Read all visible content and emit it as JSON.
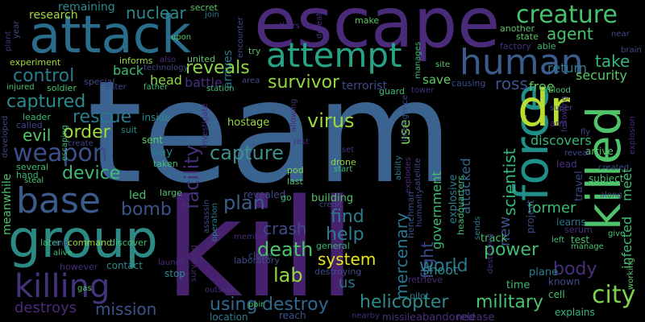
{
  "word_cloud": {
    "background": "#000000",
    "words": [
      {
        "text": "team",
        "color": "#3b638f"
      },
      {
        "text": "kill",
        "color": "#46216e"
      },
      {
        "text": "escape",
        "color": "#4a2b7a"
      },
      {
        "text": "attack",
        "color": "#2a6c8b"
      },
      {
        "text": "group",
        "color": "#2c8a84"
      },
      {
        "text": "force",
        "color": "#1f8f88"
      },
      {
        "text": "killed",
        "color": "#4ec36a"
      },
      {
        "text": "dr",
        "color": "#b9dd2e"
      },
      {
        "text": "attempt",
        "color": "#26a383"
      },
      {
        "text": "human",
        "color": "#3a5b8c"
      },
      {
        "text": "base",
        "color": "#3a5b8c"
      },
      {
        "text": "killing",
        "color": "#46337d"
      },
      {
        "text": "creature",
        "color": "#48c16e"
      },
      {
        "text": "city",
        "color": "#7cd250"
      },
      {
        "text": "weapon",
        "color": "#3c4f8a"
      },
      {
        "text": "reveals",
        "color": "#8cd845"
      },
      {
        "text": "control",
        "color": "#287b8e"
      },
      {
        "text": "rescue",
        "color": "#287b8e"
      },
      {
        "text": "captured",
        "color": "#2b8b8b"
      },
      {
        "text": "facility",
        "color": "#472d7b"
      },
      {
        "text": "survivor",
        "color": "#93d741"
      },
      {
        "text": "capture",
        "color": "#3b8f8c"
      },
      {
        "text": "virus",
        "color": "#9bd93c"
      },
      {
        "text": "plan",
        "color": "#3a5e8c"
      },
      {
        "text": "bomb",
        "color": "#3a548c"
      },
      {
        "text": "device",
        "color": "#3fbc73"
      },
      {
        "text": "order",
        "color": "#a0da39"
      },
      {
        "text": "death",
        "color": "#4ec36a"
      },
      {
        "text": "lab",
        "color": "#93d741"
      },
      {
        "text": "find",
        "color": "#2c7c8e"
      },
      {
        "text": "help",
        "color": "#2c7c8e"
      },
      {
        "text": "system",
        "color": "#e9e61b"
      },
      {
        "text": "crash",
        "color": "#3e4a89"
      },
      {
        "text": "mercenary",
        "color": "#2a768e"
      },
      {
        "text": "fight",
        "color": "#3e4a89"
      },
      {
        "text": "world",
        "color": "#2a768e"
      },
      {
        "text": "power",
        "color": "#3fbc73"
      },
      {
        "text": "body",
        "color": "#46307e"
      },
      {
        "text": "scientist",
        "color": "#35b779"
      },
      {
        "text": "infected",
        "color": "#3fbc73"
      },
      {
        "text": "meet",
        "color": "#3fbc73"
      },
      {
        "text": "military",
        "color": "#4ac16d"
      },
      {
        "text": "helicopter",
        "color": "#2c8a8b"
      },
      {
        "text": "destroy",
        "color": "#31688e"
      },
      {
        "text": "using",
        "color": "#31688e"
      },
      {
        "text": "mission",
        "color": "#3a548c"
      },
      {
        "text": "destroys",
        "color": "#4a2b7a"
      },
      {
        "text": "us",
        "color": "#2d708e"
      },
      {
        "text": "agent",
        "color": "#4ac16d"
      },
      {
        "text": "take",
        "color": "#35b779"
      },
      {
        "text": "return",
        "color": "#2c7c8e"
      },
      {
        "text": "security",
        "color": "#58c765"
      },
      {
        "text": "free",
        "color": "#5ec962"
      },
      {
        "text": "ross",
        "color": "#3b528b"
      },
      {
        "text": "nuclear",
        "color": "#2c8a8b"
      },
      {
        "text": "head",
        "color": "#8cd845"
      },
      {
        "text": "back",
        "color": "#3fbc73"
      },
      {
        "text": "battle",
        "color": "#46307e"
      },
      {
        "text": "save",
        "color": "#5ec962"
      },
      {
        "text": "new",
        "color": "#3a548c"
      },
      {
        "text": "former",
        "color": "#3fbc73"
      },
      {
        "text": "discovers",
        "color": "#35b779"
      },
      {
        "text": "government",
        "color": "#3fbc73"
      },
      {
        "text": "attacked",
        "color": "#31688e"
      },
      {
        "text": "shoot",
        "color": "#2c8a8b"
      },
      {
        "text": "use",
        "color": "#7cd250"
      },
      {
        "text": "evil",
        "color": "#56c667"
      },
      {
        "text": "led",
        "color": "#4ac16d"
      },
      {
        "text": "research",
        "color": "#a0da39"
      },
      {
        "text": "remaining",
        "color": "#2c8a8b"
      },
      {
        "text": "arrives",
        "color": "#2a768e"
      },
      {
        "text": "terrorist",
        "color": "#3e4a89"
      },
      {
        "text": "meanwhile",
        "color": "#4ac16d"
      },
      {
        "text": "hostage",
        "color": "#9bd93c"
      },
      {
        "text": "revealed",
        "color": "#3e4a89"
      },
      {
        "text": "building",
        "color": "#4ec36a"
      },
      {
        "text": "plane",
        "color": "#2c7c8e"
      },
      {
        "text": "time",
        "color": "#3fbc73"
      },
      {
        "text": "known",
        "color": "#3e4a89"
      },
      {
        "text": "explains",
        "color": "#35b779"
      },
      {
        "text": "abandoned",
        "color": "#4a2b7a"
      },
      {
        "text": "release",
        "color": "#46307e"
      },
      {
        "text": "missile",
        "color": "#46307e"
      },
      {
        "text": "pilot",
        "color": "#2a768e"
      },
      {
        "text": "reach",
        "color": "#3a548c"
      },
      {
        "text": "location",
        "color": "#2c7c8e"
      },
      {
        "text": "command",
        "color": "#9bd93c"
      },
      {
        "text": "later",
        "color": "#3fbc73"
      },
      {
        "text": "contact",
        "color": "#2c8a8b"
      },
      {
        "text": "stop",
        "color": "#2c8a8b"
      },
      {
        "text": "inside",
        "color": "#2c8a8b"
      },
      {
        "text": "sent",
        "color": "#5ec962"
      },
      {
        "text": "suit",
        "color": "#2c8a8b"
      },
      {
        "text": "way",
        "color": "#2c7c8e"
      },
      {
        "text": "taken",
        "color": "#3fbc73"
      },
      {
        "text": "large",
        "color": "#4ac16d"
      },
      {
        "text": "discover",
        "color": "#3fbc73"
      },
      {
        "text": "explosive",
        "color": "#2c7c8e"
      },
      {
        "text": "headquarters",
        "color": "#3fbc73"
      },
      {
        "text": "track",
        "color": "#4ac16d"
      },
      {
        "text": "travel",
        "color": "#3e4a89"
      },
      {
        "text": "project",
        "color": "#3e4a89"
      },
      {
        "text": "lead",
        "color": "#46307e"
      },
      {
        "text": "arrive",
        "color": "#58c765"
      },
      {
        "text": "subject",
        "color": "#4ac16d"
      },
      {
        "text": "learns",
        "color": "#2a768e"
      },
      {
        "text": "test",
        "color": "#4ac16d"
      },
      {
        "text": "serum",
        "color": "#4a2b7a"
      },
      {
        "text": "give",
        "color": "#4ac16d"
      },
      {
        "text": "manage",
        "color": "#4ac16d"
      },
      {
        "text": "left",
        "color": "#3fbc73"
      },
      {
        "text": "cell",
        "color": "#4ac16d"
      },
      {
        "text": "destroyed",
        "color": "#4a2b7a"
      },
      {
        "text": "sends",
        "color": "#2c7c8e"
      },
      {
        "text": "humanity",
        "color": "#3e4a89"
      },
      {
        "text": "henchman",
        "color": "#3e4a89"
      },
      {
        "text": "clone",
        "color": "#3e4a89"
      },
      {
        "text": "member",
        "color": "#4a2b7a"
      },
      {
        "text": "laboratory",
        "color": "#3e4a89"
      },
      {
        "text": "destroying",
        "color": "#3e4a89"
      },
      {
        "text": "general",
        "color": "#35b779"
      },
      {
        "text": "retrieve",
        "color": "#4a2b7a"
      },
      {
        "text": "outside",
        "color": "#46307e"
      },
      {
        "text": "pair",
        "color": "#4ac16d"
      },
      {
        "text": "go",
        "color": "#35b779"
      },
      {
        "text": "nearby",
        "color": "#4a2b7a"
      },
      {
        "text": "last",
        "color": "#4ac16d"
      },
      {
        "text": "pod",
        "color": "#7cd250"
      },
      {
        "text": "drone",
        "color": "#9bd93c"
      },
      {
        "text": "start",
        "color": "#3fbc73"
      },
      {
        "text": "set",
        "color": "#46307e"
      },
      {
        "text": "rest",
        "color": "#46307e"
      },
      {
        "text": "credit",
        "color": "#3e4a89"
      },
      {
        "text": "allowing",
        "color": "#4a2b7a"
      },
      {
        "text": "assassin",
        "color": "#3e4a89"
      },
      {
        "text": "operation",
        "color": "#2c7c8e"
      },
      {
        "text": "surviving",
        "color": "#4a2b7a"
      },
      {
        "text": "launch",
        "color": "#4a2b7a"
      },
      {
        "text": "however",
        "color": "#46307e"
      },
      {
        "text": "alive",
        "color": "#3fbc73"
      },
      {
        "text": "dna",
        "color": "#3e4a89"
      },
      {
        "text": "gas",
        "color": "#58c765"
      },
      {
        "text": "several",
        "color": "#3fbc73"
      },
      {
        "text": "hand",
        "color": "#35b779"
      },
      {
        "text": "steal",
        "color": "#4ac16d"
      },
      {
        "text": "escaping",
        "color": "#3fbc73"
      },
      {
        "text": "called",
        "color": "#3e4a89"
      },
      {
        "text": "leader",
        "color": "#3fbc73"
      },
      {
        "text": "injured",
        "color": "#4ac16d"
      },
      {
        "text": "soldier",
        "color": "#4ac16d"
      },
      {
        "text": "special",
        "color": "#3e4a89"
      },
      {
        "text": "enter",
        "color": "#3e4a89"
      },
      {
        "text": "father",
        "color": "#3fbc73"
      },
      {
        "text": "experiment",
        "color": "#a0da39"
      },
      {
        "text": "informs",
        "color": "#9bd93c"
      },
      {
        "text": "united",
        "color": "#58c765"
      },
      {
        "text": "also",
        "color": "#4a2b7a"
      },
      {
        "text": "technology",
        "color": "#3e4a89"
      },
      {
        "text": "station",
        "color": "#3fbc73"
      },
      {
        "text": "area",
        "color": "#3e4a89"
      },
      {
        "text": "try",
        "color": "#58c765"
      },
      {
        "text": "encounter",
        "color": "#3e4a89"
      },
      {
        "text": "secret",
        "color": "#58c765"
      },
      {
        "text": "join",
        "color": "#2c7c8e"
      },
      {
        "text": "upon",
        "color": "#58c765"
      },
      {
        "text": "others",
        "color": "#4a2b7a"
      },
      {
        "text": "defeat",
        "color": "#46307e"
      },
      {
        "text": "make",
        "color": "#58c765"
      },
      {
        "text": "site",
        "color": "#58c765"
      },
      {
        "text": "causing",
        "color": "#3e4a89"
      },
      {
        "text": "guard",
        "color": "#3fbc73"
      },
      {
        "text": "intelligence",
        "color": "#3e4a89"
      },
      {
        "text": "ability",
        "color": "#2c7c8e"
      },
      {
        "text": "explodes",
        "color": "#4a2b7a"
      },
      {
        "text": "satellite",
        "color": "#3e4a89"
      },
      {
        "text": "tower",
        "color": "#4a2b7a"
      },
      {
        "text": "manages",
        "color": "#3fbc73"
      },
      {
        "text": "another",
        "color": "#58c765"
      },
      {
        "text": "state",
        "color": "#58c765"
      },
      {
        "text": "factory",
        "color": "#46307e"
      },
      {
        "text": "able",
        "color": "#3fbc73"
      },
      {
        "text": "blood",
        "color": "#4ac16d"
      },
      {
        "text": "super",
        "color": "#3e4a89"
      },
      {
        "text": "following",
        "color": "#46307e"
      },
      {
        "text": "arm",
        "color": "#46307e"
      },
      {
        "text": "fly",
        "color": "#3e4a89"
      },
      {
        "text": "reveal",
        "color": "#3e4a89"
      },
      {
        "text": "created",
        "color": "#3e4a89"
      },
      {
        "text": "explosion",
        "color": "#4a2b7a"
      },
      {
        "text": "brain",
        "color": "#3e4a89"
      },
      {
        "text": "near",
        "color": "#3e4a89"
      },
      {
        "text": "along",
        "color": "#3e4a89"
      },
      {
        "text": "working",
        "color": "#58c765"
      },
      {
        "text": "plant",
        "color": "#46307e"
      },
      {
        "text": "year",
        "color": "#3e4a89"
      },
      {
        "text": "developed",
        "color": "#3e4a89"
      },
      {
        "text": "create",
        "color": "#3e4a89"
      },
      {
        "text": "investigate",
        "color": "#4a2b7a"
      }
    ]
  }
}
